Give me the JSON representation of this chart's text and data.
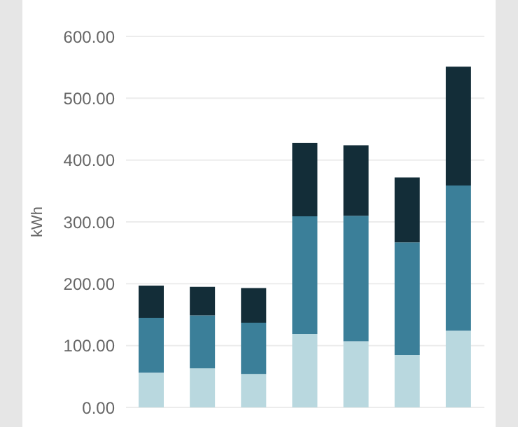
{
  "chart_data": {
    "type": "bar",
    "stacked": true,
    "ylabel": "kWh",
    "categories": [
      null,
      null,
      null,
      null,
      null,
      null,
      null
    ],
    "series": [
      {
        "color": "#b9d8df",
        "values": [
          56,
          63,
          54,
          119,
          107,
          85,
          124
        ]
      },
      {
        "color": "#3b7f99",
        "values": [
          89,
          86,
          83,
          190,
          203,
          182,
          235
        ]
      },
      {
        "color": "#132d38",
        "values": [
          52,
          46,
          56,
          119,
          114,
          105,
          192
        ]
      }
    ],
    "ylim": [
      0,
      600
    ],
    "yticks": [
      {
        "value": 0,
        "label": "0.00"
      },
      {
        "value": 100,
        "label": "100.00"
      },
      {
        "value": 200,
        "label": "200.00"
      },
      {
        "value": 300,
        "label": "300.00"
      },
      {
        "value": 400,
        "label": "400.00"
      },
      {
        "value": 500,
        "label": "500.00"
      },
      {
        "value": 600,
        "label": "600.00"
      }
    ],
    "grid": "y",
    "tick_labels": "y"
  }
}
